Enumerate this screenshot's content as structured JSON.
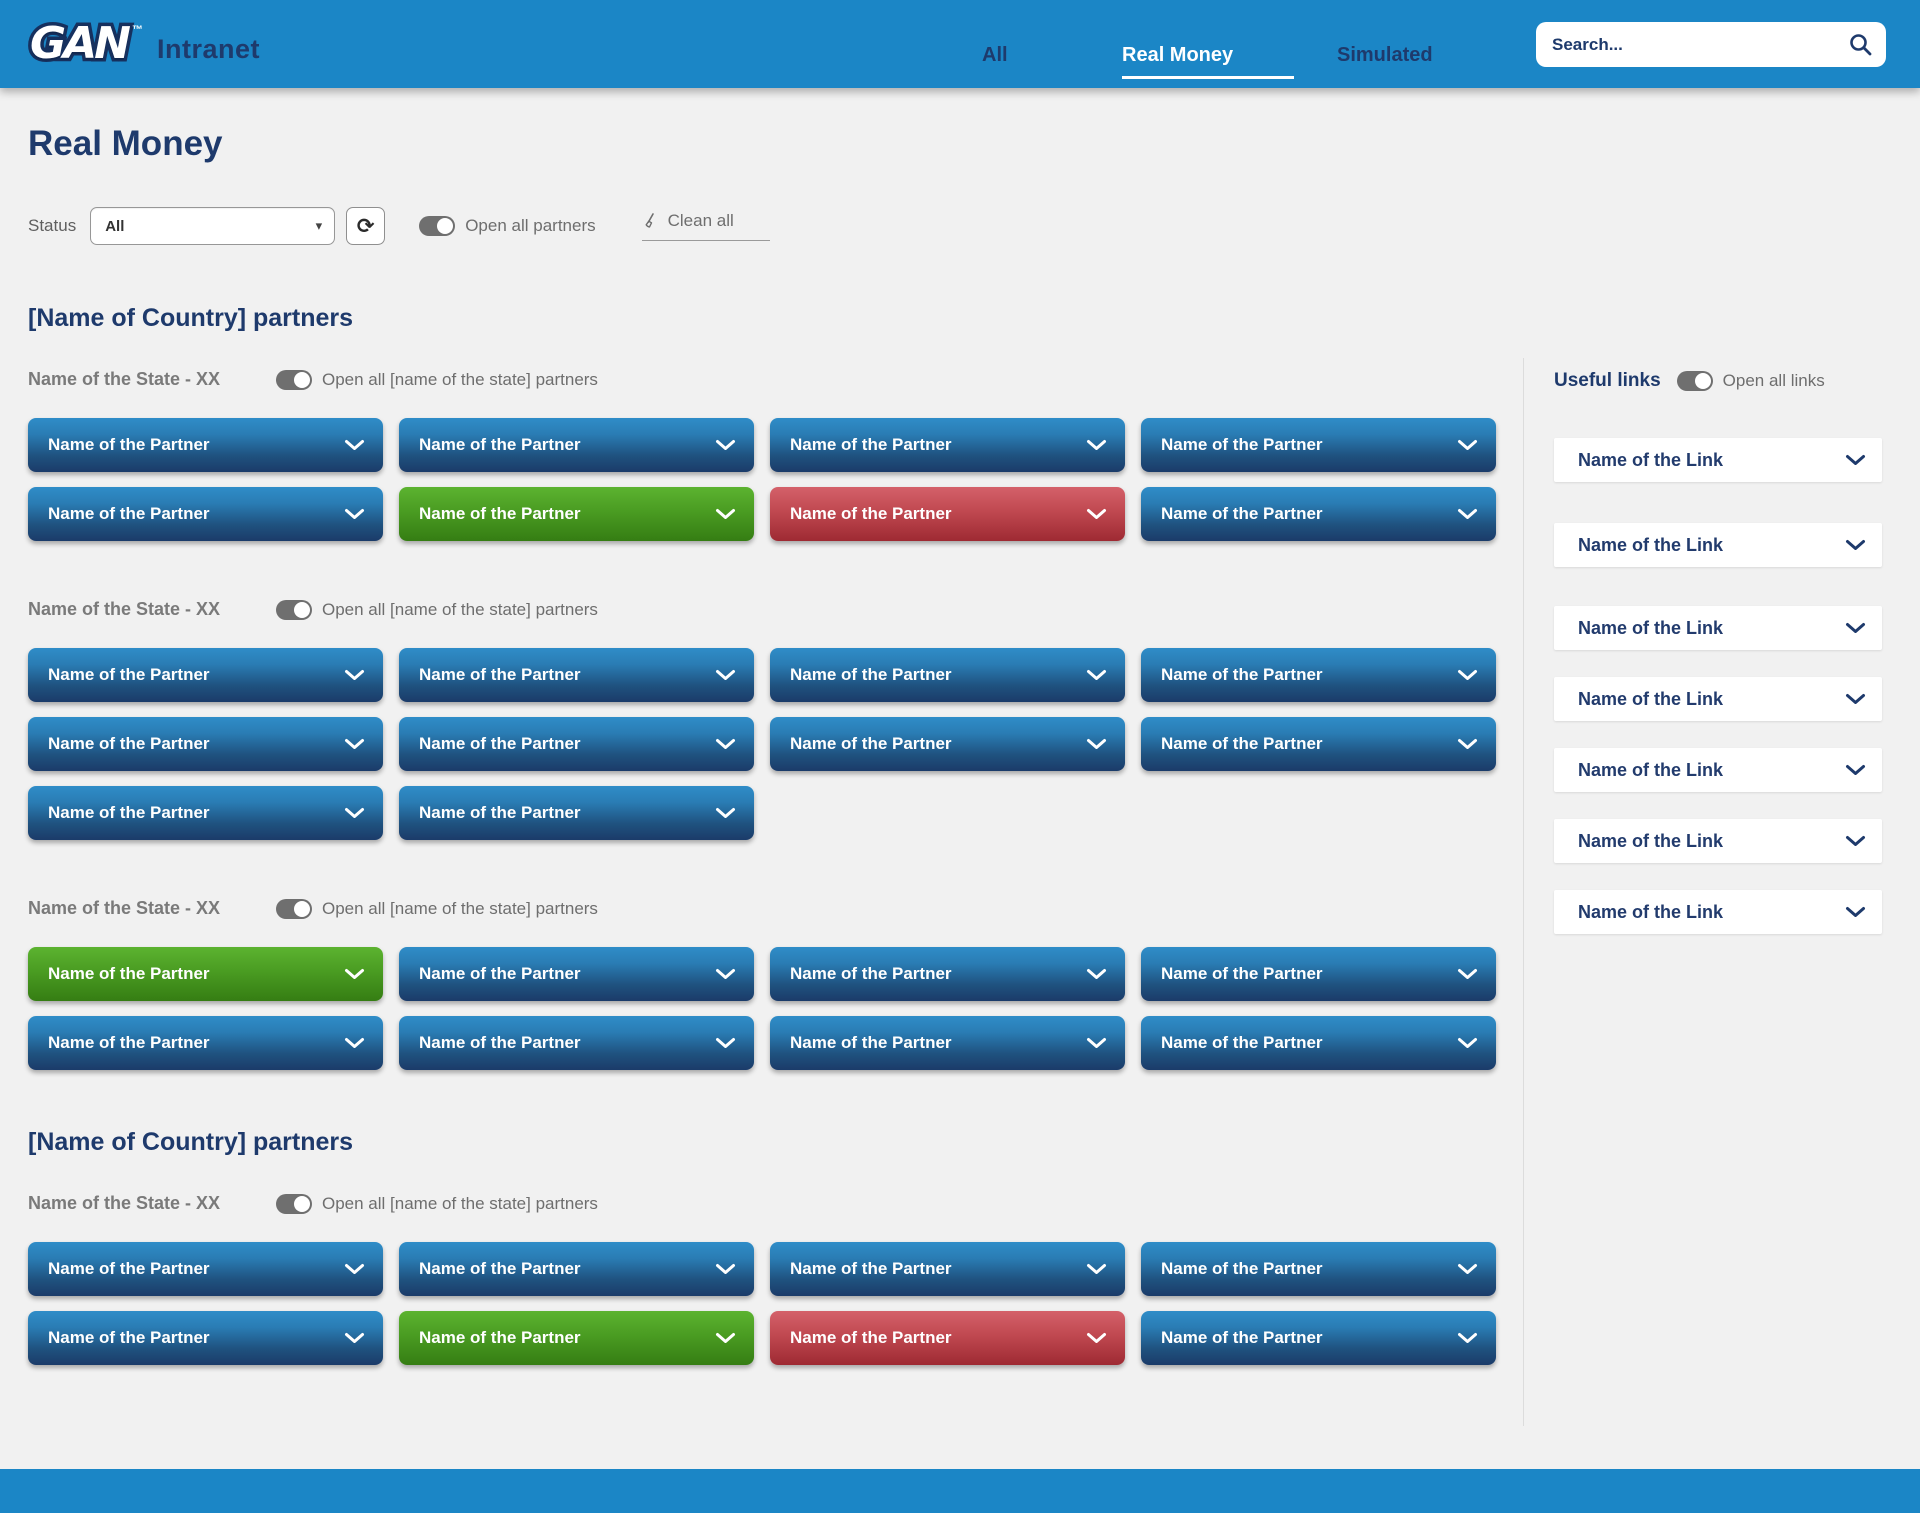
{
  "colors": {
    "header_blue": "#1b86c6",
    "navy_text": "#1e3a6c",
    "page_bg": "#f1f1f1",
    "gray_text": "#6e6e6e",
    "partner_blue_top": "#2f8dc8",
    "partner_blue_bottom": "#1b3b69",
    "partner_green_top": "#5cb330",
    "partner_green_bottom": "#357d13",
    "partner_red_top": "#d4616a",
    "partner_red_bottom": "#9e2a33"
  },
  "header": {
    "logo_text": "GAN",
    "logo_tm": "™",
    "app_title": "Intranet",
    "tabs": [
      {
        "label": "All",
        "active": false
      },
      {
        "label": "Real Money",
        "active": true
      },
      {
        "label": "Simulated",
        "active": false
      }
    ],
    "search_placeholder": "Search..."
  },
  "page_title": "Real Money",
  "filters": {
    "status_label": "Status",
    "status_value": "All",
    "refresh_icon": "⟳",
    "select_caret": "▾",
    "open_all_label": "Open all partners",
    "clean_all_label": "Clean all"
  },
  "sections": [
    {
      "title": "[Name of Country] partners",
      "states": [
        {
          "name": "Name of the State - XX",
          "toggle_label": "Open all [name of the state] partners",
          "rows": [
            [
              {
                "label": "Name of the Partner",
                "variant": "blue"
              },
              {
                "label": "Name of the Partner",
                "variant": "blue"
              },
              {
                "label": "Name of the Partner",
                "variant": "blue"
              },
              {
                "label": "Name of the Partner",
                "variant": "blue"
              }
            ],
            [
              {
                "label": "Name of the Partner",
                "variant": "blue"
              },
              {
                "label": "Name of the Partner",
                "variant": "green"
              },
              {
                "label": "Name of the Partner",
                "variant": "red"
              },
              {
                "label": "Name of the Partner",
                "variant": "blue"
              }
            ]
          ]
        },
        {
          "name": "Name of the State - XX",
          "toggle_label": "Open all [name of the state] partners",
          "rows": [
            [
              {
                "label": "Name of the Partner",
                "variant": "blue"
              },
              {
                "label": "Name of the Partner",
                "variant": "blue"
              },
              {
                "label": "Name of the Partner",
                "variant": "blue"
              },
              {
                "label": "Name of the Partner",
                "variant": "blue"
              }
            ],
            [
              {
                "label": "Name of the Partner",
                "variant": "blue"
              },
              {
                "label": "Name of the Partner",
                "variant": "blue"
              },
              {
                "label": "Name of the Partner",
                "variant": "blue"
              },
              {
                "label": "Name of the Partner",
                "variant": "blue"
              }
            ],
            [
              {
                "label": "Name of the Partner",
                "variant": "blue"
              },
              {
                "label": "Name of the Partner",
                "variant": "blue"
              }
            ]
          ]
        },
        {
          "name": "Name of the State - XX",
          "toggle_label": "Open all [name of the state] partners",
          "rows": [
            [
              {
                "label": "Name of the Partner",
                "variant": "green"
              },
              {
                "label": "Name of the Partner",
                "variant": "blue"
              },
              {
                "label": "Name of the Partner",
                "variant": "blue"
              },
              {
                "label": "Name of the Partner",
                "variant": "blue"
              }
            ],
            [
              {
                "label": "Name of the Partner",
                "variant": "blue"
              },
              {
                "label": "Name of the Partner",
                "variant": "blue"
              },
              {
                "label": "Name of the Partner",
                "variant": "blue"
              },
              {
                "label": "Name of the Partner",
                "variant": "blue"
              }
            ]
          ]
        }
      ]
    },
    {
      "title": "[Name of Country] partners",
      "states": [
        {
          "name": "Name of the State - XX",
          "toggle_label": "Open all [name of the state] partners",
          "rows": [
            [
              {
                "label": "Name of the Partner",
                "variant": "blue"
              },
              {
                "label": "Name of the Partner",
                "variant": "blue"
              },
              {
                "label": "Name of the Partner",
                "variant": "blue"
              },
              {
                "label": "Name of the Partner",
                "variant": "blue"
              }
            ],
            [
              {
                "label": "Name of the Partner",
                "variant": "blue"
              },
              {
                "label": "Name of the Partner",
                "variant": "green"
              },
              {
                "label": "Name of the Partner",
                "variant": "red"
              },
              {
                "label": "Name of the Partner",
                "variant": "blue"
              }
            ]
          ]
        }
      ]
    }
  ],
  "sidebar": {
    "title": "Useful links",
    "toggle_label": "Open all links",
    "links": [
      {
        "label": "Name of the Link"
      },
      {
        "label": "Name of the Link"
      },
      {
        "label": "Name of the Link"
      },
      {
        "label": "Name of the Link"
      },
      {
        "label": "Name of the Link"
      },
      {
        "label": "Name of the Link"
      },
      {
        "label": "Name of the Link"
      }
    ]
  }
}
